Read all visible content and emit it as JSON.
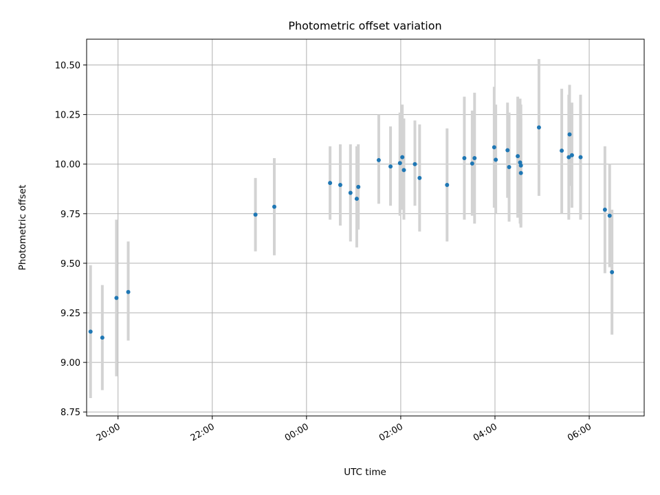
{
  "chart_data": {
    "type": "scatter",
    "title": "Photometric offset variation",
    "xlabel": "UTC time",
    "ylabel": "Photometric offset",
    "x_axis": {
      "kind": "time",
      "range": [
        "19:20",
        "07:10"
      ],
      "ticks": [
        "20:00",
        "22:00",
        "00:00",
        "02:00",
        "04:00",
        "06:00"
      ]
    },
    "y_axis": {
      "range": [
        8.73,
        10.63
      ],
      "ticks": [
        "8.75",
        "9.00",
        "9.25",
        "9.50",
        "9.75",
        "10.00",
        "10.25",
        "10.50"
      ]
    },
    "grid": true,
    "points": [
      {
        "t": "19:25",
        "y": 9.155,
        "lo": 8.82,
        "hi": 9.49
      },
      {
        "t": "19:40",
        "y": 9.125,
        "lo": 8.86,
        "hi": 9.39
      },
      {
        "t": "19:58",
        "y": 9.325,
        "lo": 8.93,
        "hi": 9.72
      },
      {
        "t": "20:13",
        "y": 9.355,
        "lo": 9.11,
        "hi": 9.61
      },
      {
        "t": "22:55",
        "y": 9.745,
        "lo": 9.56,
        "hi": 9.93
      },
      {
        "t": "23:19",
        "y": 9.785,
        "lo": 9.54,
        "hi": 10.03
      },
      {
        "t": "00:30",
        "y": 9.905,
        "lo": 9.72,
        "hi": 10.09
      },
      {
        "t": "00:43",
        "y": 9.895,
        "lo": 9.69,
        "hi": 10.1
      },
      {
        "t": "00:56",
        "y": 9.855,
        "lo": 9.61,
        "hi": 10.1
      },
      {
        "t": "01:04",
        "y": 9.825,
        "lo": 9.58,
        "hi": 10.09
      },
      {
        "t": "01:06",
        "y": 9.885,
        "lo": 9.67,
        "hi": 10.1
      },
      {
        "t": "01:32",
        "y": 10.02,
        "lo": 9.8,
        "hi": 10.25
      },
      {
        "t": "01:47",
        "y": 9.988,
        "lo": 9.79,
        "hi": 10.19
      },
      {
        "t": "01:59",
        "y": 10.005,
        "lo": 9.74,
        "hi": 10.26
      },
      {
        "t": "02:02",
        "y": 10.035,
        "lo": 9.77,
        "hi": 10.3
      },
      {
        "t": "02:04",
        "y": 9.97,
        "lo": 9.72,
        "hi": 10.23
      },
      {
        "t": "02:18",
        "y": 10.0,
        "lo": 9.79,
        "hi": 10.22
      },
      {
        "t": "02:24",
        "y": 9.93,
        "lo": 9.66,
        "hi": 10.2
      },
      {
        "t": "02:59",
        "y": 9.895,
        "lo": 9.61,
        "hi": 10.18
      },
      {
        "t": "03:21",
        "y": 10.03,
        "lo": 9.72,
        "hi": 10.34
      },
      {
        "t": "03:31",
        "y": 10.003,
        "lo": 9.74,
        "hi": 10.27
      },
      {
        "t": "03:34",
        "y": 10.03,
        "lo": 9.7,
        "hi": 10.36
      },
      {
        "t": "03:59",
        "y": 10.085,
        "lo": 9.78,
        "hi": 10.39
      },
      {
        "t": "04:01",
        "y": 10.022,
        "lo": 9.75,
        "hi": 10.3
      },
      {
        "t": "04:16",
        "y": 10.07,
        "lo": 9.83,
        "hi": 10.31
      },
      {
        "t": "04:18",
        "y": 9.985,
        "lo": 9.71,
        "hi": 10.26
      },
      {
        "t": "04:29",
        "y": 10.04,
        "lo": 9.73,
        "hi": 10.34
      },
      {
        "t": "04:32",
        "y": 10.008,
        "lo": 9.7,
        "hi": 10.33
      },
      {
        "t": "04:33",
        "y": 9.993,
        "lo": 9.69,
        "hi": 10.3
      },
      {
        "t": "04:33",
        "y": 9.955,
        "lo": 9.68,
        "hi": 10.23
      },
      {
        "t": "04:56",
        "y": 10.185,
        "lo": 9.84,
        "hi": 10.53
      },
      {
        "t": "05:25",
        "y": 10.068,
        "lo": 9.75,
        "hi": 10.38
      },
      {
        "t": "05:34",
        "y": 10.035,
        "lo": 9.72,
        "hi": 10.35
      },
      {
        "t": "05:35",
        "y": 10.15,
        "lo": 9.89,
        "hi": 10.4
      },
      {
        "t": "05:38",
        "y": 10.045,
        "lo": 9.78,
        "hi": 10.31
      },
      {
        "t": "05:49",
        "y": 10.035,
        "lo": 9.72,
        "hi": 10.35
      },
      {
        "t": "06:20",
        "y": 9.77,
        "lo": 9.45,
        "hi": 10.09
      },
      {
        "t": "06:26",
        "y": 9.74,
        "lo": 9.48,
        "hi": 10.0
      },
      {
        "t": "06:29",
        "y": 9.455,
        "lo": 9.14,
        "hi": 9.77
      }
    ],
    "colors": {
      "points": "#1f77b4",
      "errorbars": "#d3d3d3",
      "grid": "#b0b0b0"
    }
  }
}
